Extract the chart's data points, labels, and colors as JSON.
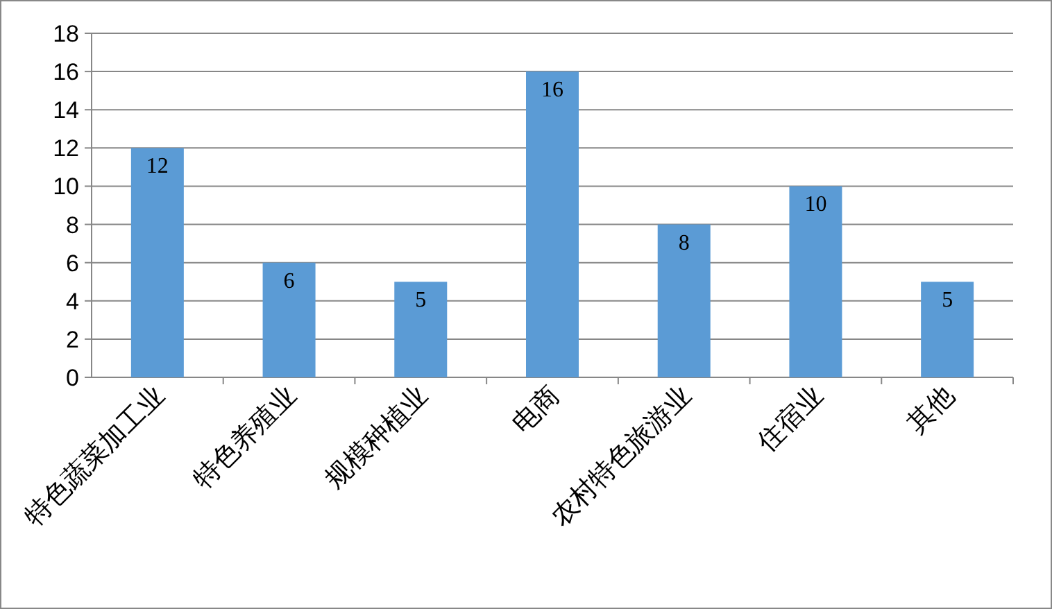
{
  "chart_data": {
    "type": "bar",
    "categories": [
      "特色蔬菜加工业",
      "特色养殖业",
      "规模种植业",
      "电商",
      "农村特色旅游业",
      "住宿业",
      "其他"
    ],
    "values": [
      12,
      6,
      5,
      16,
      8,
      10,
      5
    ],
    "color": "#5b9bd5",
    "ylim": [
      0,
      18
    ],
    "yticks": [
      0,
      2,
      4,
      6,
      8,
      10,
      12,
      14,
      16,
      18
    ],
    "grid": "y",
    "data_labels": true
  }
}
